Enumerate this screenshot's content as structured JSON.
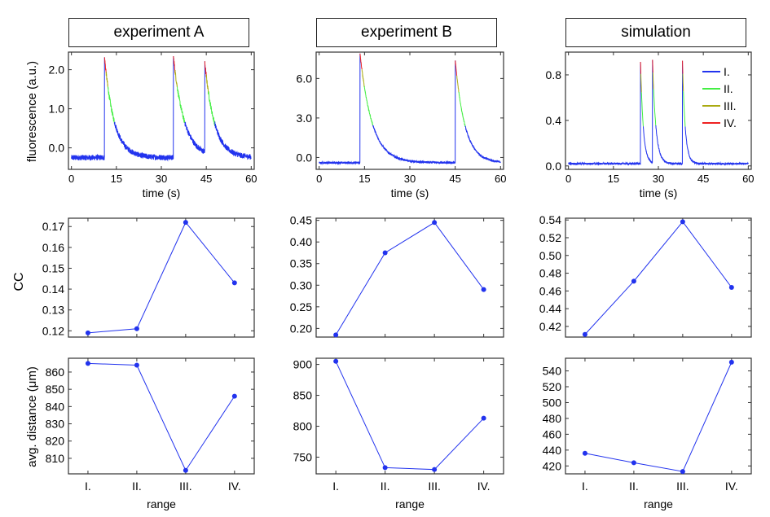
{
  "columns": [
    "experiment A",
    "experiment B",
    "simulation"
  ],
  "row_labels": {
    "top": "fluorescence (a.u.)",
    "middle": "CC",
    "bottom": "avg. distance (μm)"
  },
  "colors": {
    "I": "#2233ee",
    "II": "#44ee44",
    "III": "#aaaa11",
    "IV": "#ee2222",
    "marker": "#2233ee",
    "frame": "#333333"
  },
  "chart_data": [
    {
      "type": "line",
      "panel": "trace-A",
      "title": "experiment A",
      "xlabel": "time (s)",
      "ylabel": "fluorescence (a.u.)",
      "xlim": [
        -1,
        61
      ],
      "ylim": [
        -0.55,
        2.45
      ],
      "xticks": [
        0,
        15,
        30,
        45,
        60
      ],
      "xtick_labels": [
        "0",
        "15",
        "30",
        "45",
        "60"
      ],
      "yticks": [
        0,
        1,
        2
      ],
      "ytick_labels": [
        "0.0",
        "1.0",
        "2.0"
      ],
      "baseline": -0.25,
      "noise": 0.07,
      "events": [
        {
          "t": 11,
          "amp": 2.6,
          "tau": 3.2
        },
        {
          "t": 34,
          "amp": 2.6,
          "tau": 3.6
        },
        {
          "t": 44.5,
          "amp": 2.3,
          "tau": 3.2
        }
      ],
      "legend": []
    },
    {
      "type": "line",
      "panel": "trace-B",
      "title": "experiment B",
      "xlabel": "time (s)",
      "ylabel": "",
      "xlim": [
        -1,
        61
      ],
      "ylim": [
        -0.9,
        8.0
      ],
      "xticks": [
        0,
        15,
        30,
        45,
        60
      ],
      "xtick_labels": [
        "0",
        "15",
        "30",
        "45",
        "60"
      ],
      "yticks": [
        0,
        3,
        6
      ],
      "ytick_labels": [
        "0.0",
        "3.0",
        "6.0"
      ],
      "baseline": -0.4,
      "noise": 0.08,
      "events": [
        {
          "t": 13.5,
          "amp": 8.3,
          "tau": 4.0
        },
        {
          "t": 45,
          "amp": 7.8,
          "tau": 3.2
        }
      ],
      "legend": []
    },
    {
      "type": "line",
      "panel": "trace-sim",
      "title": "simulation",
      "xlabel": "time (s)",
      "ylabel": "",
      "xlim": [
        -1,
        61
      ],
      "ylim": [
        -0.03,
        1.0
      ],
      "xticks": [
        0,
        15,
        30,
        45,
        60
      ],
      "xtick_labels": [
        "0",
        "15",
        "30",
        "45",
        "60"
      ],
      "yticks": [
        0,
        0.4,
        0.8
      ],
      "ytick_labels": [
        "0.0",
        "0.4",
        "0.8"
      ],
      "baseline": 0.02,
      "noise": 0.008,
      "events": [
        {
          "t": 24,
          "amp": 0.94,
          "tau": 0.9
        },
        {
          "t": 28,
          "amp": 0.94,
          "tau": 1.1
        },
        {
          "t": 38,
          "amp": 0.94,
          "tau": 0.9
        }
      ],
      "legend": [
        "I.",
        "II.",
        "III.",
        "IV."
      ]
    },
    {
      "type": "scatter",
      "panel": "cc-A",
      "ylabel": "CC",
      "categories": [
        "I.",
        "II.",
        "III.",
        "IV."
      ],
      "values": [
        0.119,
        0.121,
        0.172,
        0.143
      ],
      "ylim": [
        0.117,
        0.174
      ],
      "yticks": [
        0.12,
        0.13,
        0.14,
        0.15,
        0.16,
        0.17
      ],
      "ytick_labels": [
        "0.12",
        "0.13",
        "0.14",
        "0.15",
        "0.16",
        "0.17"
      ]
    },
    {
      "type": "scatter",
      "panel": "cc-B",
      "ylabel": "",
      "categories": [
        "I.",
        "II.",
        "III.",
        "IV."
      ],
      "values": [
        0.185,
        0.375,
        0.445,
        0.29
      ],
      "ylim": [
        0.18,
        0.455
      ],
      "yticks": [
        0.2,
        0.25,
        0.3,
        0.35,
        0.4,
        0.45
      ],
      "ytick_labels": [
        "0.20",
        "0.25",
        "0.30",
        "0.35",
        "0.40",
        "0.45"
      ]
    },
    {
      "type": "scatter",
      "panel": "cc-sim",
      "ylabel": "",
      "categories": [
        "I.",
        "II.",
        "III.",
        "IV."
      ],
      "values": [
        0.411,
        0.471,
        0.538,
        0.464
      ],
      "ylim": [
        0.408,
        0.542
      ],
      "yticks": [
        0.42,
        0.44,
        0.46,
        0.48,
        0.5,
        0.52,
        0.54
      ],
      "ytick_labels": [
        "0.42",
        "0.44",
        "0.46",
        "0.48",
        "0.50",
        "0.52",
        "0.54"
      ]
    },
    {
      "type": "scatter",
      "panel": "dist-A",
      "xlabel": "range",
      "ylabel": "avg. distance (μm)",
      "categories": [
        "I.",
        "II.",
        "III.",
        "IV."
      ],
      "values": [
        865,
        864,
        803,
        846
      ],
      "ylim": [
        801,
        868
      ],
      "yticks": [
        810,
        820,
        830,
        840,
        850,
        860
      ],
      "ytick_labels": [
        "810",
        "820",
        "830",
        "840",
        "850",
        "860"
      ]
    },
    {
      "type": "scatter",
      "panel": "dist-B",
      "xlabel": "range",
      "ylabel": "",
      "categories": [
        "I.",
        "II.",
        "III.",
        "IV."
      ],
      "values": [
        905,
        733,
        730,
        813
      ],
      "ylim": [
        723,
        910
      ],
      "yticks": [
        750,
        800,
        850,
        900
      ],
      "ytick_labels": [
        "750",
        "800",
        "850",
        "900"
      ]
    },
    {
      "type": "scatter",
      "panel": "dist-sim",
      "xlabel": "range",
      "ylabel": "",
      "categories": [
        "I.",
        "II.",
        "III.",
        "IV."
      ],
      "values": [
        436,
        424,
        413,
        551
      ],
      "ylim": [
        410,
        556
      ],
      "yticks": [
        420,
        440,
        460,
        480,
        500,
        520,
        540
      ],
      "ytick_labels": [
        "420",
        "440",
        "460",
        "480",
        "500",
        "520",
        "540"
      ]
    }
  ]
}
